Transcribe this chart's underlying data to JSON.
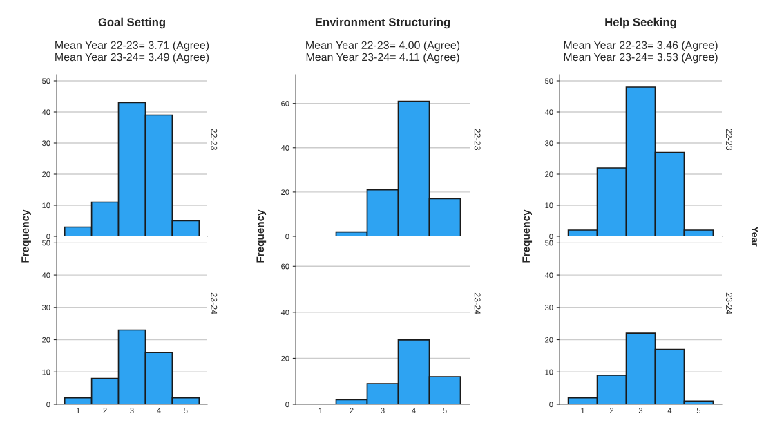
{
  "chart_data": [
    {
      "type": "histogram",
      "title": "Goal Setting",
      "subtitle": "Mean Year 22-23= 3.71 (Agree)\nMean Year 23-24= 3.49 (Agree)",
      "ylabel": "Frequency",
      "annotations": [
        "22-23"
      ],
      "bins": [
        0.5,
        1.5,
        2.5,
        3.5,
        4.5,
        5.5
      ],
      "values": [
        3,
        11,
        43,
        39,
        5
      ],
      "color": "#2ea3f2",
      "xlim": [
        0.2,
        5.8
      ],
      "ylim": [
        0,
        52
      ],
      "yticks": [
        0,
        10,
        20,
        30,
        40,
        50
      ],
      "grid": "y",
      "tick_labels": "y"
    },
    {
      "type": "histogram",
      "title": "Environment Structuring",
      "subtitle": "Mean Year 22-23= 4.00 (Agree)\nMean Year 23-24= 4.11 (Agree)",
      "ylabel": "Frequency",
      "annotations": [
        "22-23"
      ],
      "bins": [
        0.5,
        1.5,
        2.5,
        3.5,
        4.5,
        5.5
      ],
      "values": [
        0,
        2,
        21,
        61,
        17
      ],
      "color": "#2ea3f2",
      "xlim": [
        0.2,
        5.8
      ],
      "ylim": [
        0,
        73
      ],
      "yticks": [
        0,
        20,
        40,
        60
      ],
      "grid": "y",
      "tick_labels": "y"
    },
    {
      "type": "histogram",
      "title": "Help Seeking",
      "subtitle": "Mean Year 22-23= 3.46 (Agree)\nMean Year 23-24= 3.53 (Agree)",
      "ylabel": "Frequency",
      "annotations": [
        "22-23",
        "Year"
      ],
      "bins": [
        0.5,
        1.5,
        2.5,
        3.5,
        4.5,
        5.5
      ],
      "values": [
        2,
        22,
        48,
        27,
        2
      ],
      "color": "#2ea3f2",
      "xlim": [
        0.2,
        5.8
      ],
      "ylim": [
        0,
        52
      ],
      "yticks": [
        0,
        10,
        20,
        30,
        40,
        50
      ],
      "grid": "y",
      "tick_labels": "y"
    },
    {
      "type": "histogram",
      "annotations": [
        "23-24"
      ],
      "bins": [
        0.5,
        1.5,
        2.5,
        3.5,
        4.5,
        5.5
      ],
      "values": [
        2,
        8,
        23,
        16,
        2
      ],
      "color": "#2ea3f2",
      "xlim": [
        0.2,
        5.8
      ],
      "xticks": [
        1,
        2,
        3,
        4,
        5
      ],
      "ylim": [
        0,
        52
      ],
      "yticks": [
        0,
        10,
        20,
        30,
        40,
        50
      ],
      "grid": "y"
    },
    {
      "type": "histogram",
      "annotations": [
        "23-24"
      ],
      "bins": [
        0.5,
        1.5,
        2.5,
        3.5,
        4.5,
        5.5
      ],
      "values": [
        0,
        2,
        9,
        28,
        12
      ],
      "color": "#2ea3f2",
      "xlim": [
        0.2,
        5.8
      ],
      "xticks": [
        1,
        2,
        3,
        4,
        5
      ],
      "ylim": [
        0,
        73
      ],
      "yticks": [
        0,
        20,
        40,
        60
      ],
      "grid": "y"
    },
    {
      "type": "histogram",
      "annotations": [
        "23-24"
      ],
      "bins": [
        0.5,
        1.5,
        2.5,
        3.5,
        4.5,
        5.5
      ],
      "values": [
        2,
        9,
        22,
        17,
        1
      ],
      "color": "#2ea3f2",
      "xlim": [
        0.2,
        5.8
      ],
      "xticks": [
        1,
        2,
        3,
        4,
        5
      ],
      "ylim": [
        0,
        52
      ],
      "yticks": [
        0,
        10,
        20,
        30,
        40,
        50
      ],
      "grid": "y"
    }
  ]
}
